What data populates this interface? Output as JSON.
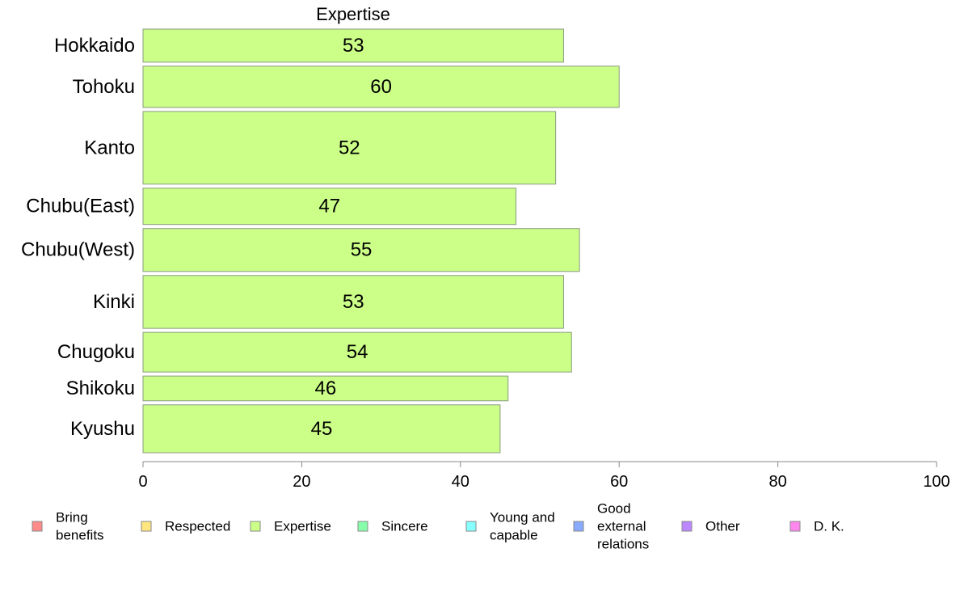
{
  "chart_data": {
    "type": "bar",
    "orientation": "horizontal",
    "title": "Expertise",
    "categories": [
      "Hokkaido",
      "Tohoku",
      "Kanto",
      "Chubu(East)",
      "Chubu(West)",
      "Kinki",
      "Chugoku",
      "Shikoku",
      "Kyushu"
    ],
    "series": [
      {
        "name": "Expertise",
        "values": [
          53,
          60,
          52,
          47,
          55,
          53,
          54,
          46,
          45
        ],
        "color": "#ccff88"
      }
    ],
    "band_weights": [
      1.0,
      1.25,
      2.2,
      1.1,
      1.3,
      1.6,
      1.2,
      0.75,
      1.45
    ],
    "xlim": [
      0,
      100
    ],
    "xticks": [
      "0",
      "20",
      "40",
      "60",
      "80",
      "100"
    ],
    "grid": false,
    "legend_placement": "bottom",
    "legend": [
      {
        "label": "Bring benefits",
        "lines": [
          "Bring",
          "benefits"
        ],
        "color": "#ff8a8a"
      },
      {
        "label": "Respected",
        "lines": [
          "Respected"
        ],
        "color": "#ffe680"
      },
      {
        "label": "Expertise",
        "lines": [
          "Expertise"
        ],
        "color": "#ccff88"
      },
      {
        "label": "Sincere",
        "lines": [
          "Sincere"
        ],
        "color": "#88ffaa"
      },
      {
        "label": "Young and capable",
        "lines": [
          "Young and",
          "capable"
        ],
        "color": "#88ffff"
      },
      {
        "label": "Good external relations",
        "lines": [
          "Good",
          "external",
          "relations"
        ],
        "color": "#88aaff"
      },
      {
        "label": "Other",
        "lines": [
          "Other"
        ],
        "color": "#bb88ff"
      },
      {
        "label": "D. K.",
        "lines": [
          "D. K."
        ],
        "color": "#ff88ee"
      }
    ]
  }
}
